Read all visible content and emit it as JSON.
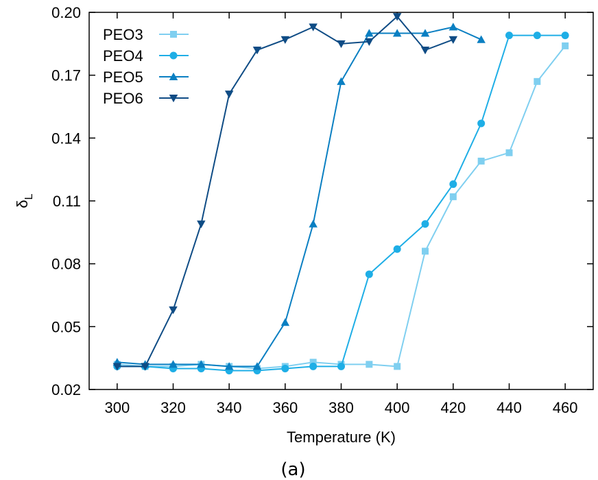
{
  "chart_data": {
    "type": "line",
    "title": "",
    "caption": "(a)",
    "xlabel": "Temperature (K)",
    "ylabel": {
      "main": "δ",
      "sub": "L"
    },
    "xlim": [
      290,
      470
    ],
    "ylim": [
      0.02,
      0.2
    ],
    "xticks": [
      300,
      320,
      340,
      360,
      380,
      400,
      420,
      440,
      460
    ],
    "yticks": [
      "0.02",
      "0.05",
      "0.08",
      "0.11",
      "0.14",
      "0.17",
      "0.20"
    ],
    "grid": false,
    "legend_position": "top-left",
    "series": [
      {
        "name": "PEO3",
        "marker": "square",
        "color": "#7fcff0",
        "x": [
          300,
          310,
          320,
          330,
          340,
          350,
          360,
          370,
          380,
          390,
          400,
          410,
          420,
          430,
          440,
          450,
          460
        ],
        "y": [
          0.032,
          0.031,
          0.031,
          0.032,
          0.031,
          0.03,
          0.031,
          0.033,
          0.032,
          0.032,
          0.031,
          0.086,
          0.112,
          0.129,
          0.133,
          0.167,
          0.184
        ]
      },
      {
        "name": "PEO4",
        "marker": "circle",
        "color": "#1eaee6",
        "x": [
          300,
          310,
          320,
          330,
          340,
          350,
          360,
          370,
          380,
          390,
          400,
          410,
          420,
          430,
          440,
          450,
          460
        ],
        "y": [
          0.031,
          0.031,
          0.03,
          0.03,
          0.029,
          0.029,
          0.03,
          0.031,
          0.031,
          0.075,
          0.087,
          0.099,
          0.118,
          0.147,
          0.189,
          0.189,
          0.189
        ]
      },
      {
        "name": "PEO5",
        "marker": "triangle-up",
        "color": "#0a7fc2",
        "x": [
          300,
          310,
          320,
          330,
          340,
          350,
          360,
          370,
          380,
          390,
          400,
          410,
          420,
          430
        ],
        "y": [
          0.033,
          0.032,
          0.032,
          0.032,
          0.031,
          0.031,
          0.052,
          0.099,
          0.167,
          0.19,
          0.19,
          0.19,
          0.193,
          0.187
        ]
      },
      {
        "name": "PEO6",
        "marker": "triangle-down",
        "color": "#0f4c85",
        "x": [
          300,
          310,
          320,
          330,
          340,
          350,
          360,
          370,
          380,
          390,
          400,
          410,
          420
        ],
        "y": [
          0.031,
          0.031,
          0.058,
          0.099,
          0.161,
          0.182,
          0.187,
          0.193,
          0.185,
          0.186,
          0.198,
          0.182,
          0.187
        ]
      }
    ]
  }
}
